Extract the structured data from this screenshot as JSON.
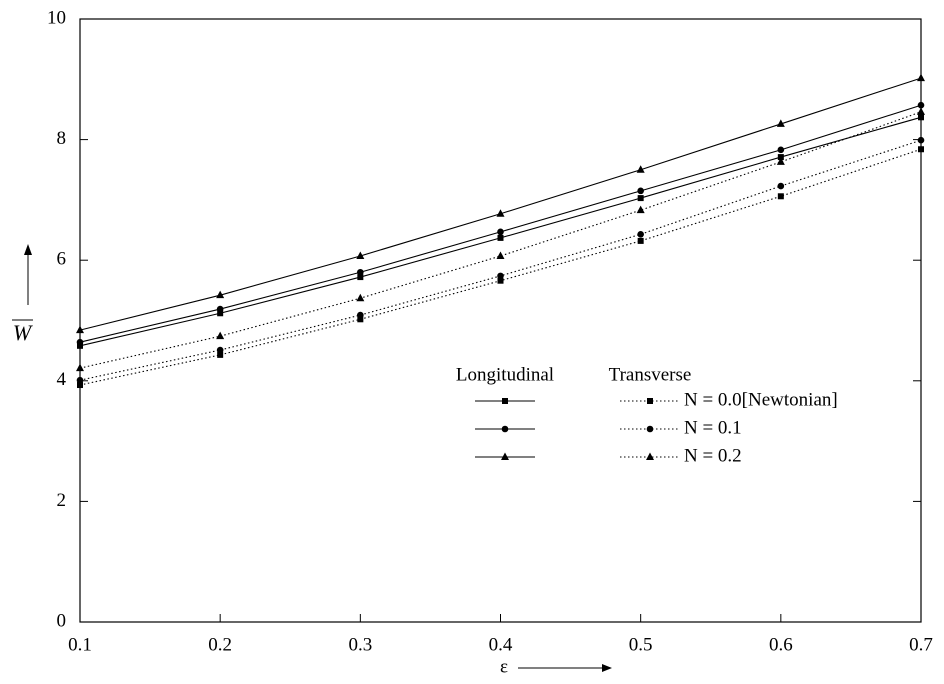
{
  "chart_data": {
    "type": "line",
    "x": [
      0.1,
      0.2,
      0.3,
      0.4,
      0.5,
      0.6,
      0.7
    ],
    "xlim": [
      0.1,
      0.7
    ],
    "xticks": [
      0.1,
      0.2,
      0.3,
      0.4,
      0.5,
      0.6,
      0.7
    ],
    "ylim": [
      0,
      10
    ],
    "yticks": [
      0,
      2,
      4,
      6,
      8,
      10
    ],
    "x_label": "ε",
    "y_label": "W",
    "color": "#000000",
    "groups": [
      {
        "name": "Longitudinal",
        "dash": "solid"
      },
      {
        "name": "Transverse",
        "dash": "dotted"
      }
    ],
    "series": [
      {
        "name": "N = 0.0[Newtonian]",
        "marker": "square",
        "values": [
          [
            4.58,
            5.12,
            5.72,
            6.37,
            7.03,
            7.71,
            8.37
          ],
          [
            3.93,
            4.43,
            5.02,
            5.66,
            6.32,
            7.06,
            7.84
          ]
        ]
      },
      {
        "name": "N = 0.1",
        "marker": "circle",
        "values": [
          [
            4.64,
            5.19,
            5.8,
            6.47,
            7.15,
            7.83,
            8.57
          ],
          [
            4.01,
            4.51,
            5.09,
            5.74,
            6.43,
            7.23,
            7.99
          ]
        ]
      },
      {
        "name": "N = 0.2",
        "marker": "triangle",
        "values": [
          [
            4.84,
            5.42,
            6.07,
            6.77,
            7.5,
            8.26,
            9.02
          ],
          [
            4.21,
            4.74,
            5.37,
            6.07,
            6.83,
            7.63,
            8.46
          ]
        ]
      }
    ]
  }
}
